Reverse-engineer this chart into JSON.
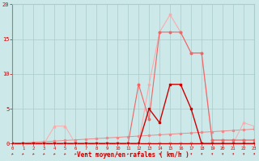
{
  "x": [
    0,
    1,
    2,
    3,
    4,
    5,
    6,
    7,
    8,
    9,
    10,
    11,
    12,
    13,
    14,
    15,
    16,
    17,
    18,
    19,
    20,
    21,
    22,
    23
  ],
  "line_dark": [
    0,
    0,
    0,
    0,
    0,
    0,
    0,
    0,
    0,
    0,
    0,
    0,
    0,
    5,
    3,
    8.5,
    8.5,
    5,
    0,
    0,
    0,
    0,
    0,
    0
  ],
  "line_mid": [
    0,
    0,
    0,
    0,
    0,
    0,
    0,
    0,
    0,
    0,
    0,
    0,
    8.5,
    3.5,
    16,
    16,
    16,
    13,
    13,
    0.5,
    0.5,
    0.5,
    0.5,
    0.5
  ],
  "line_light": [
    0,
    0,
    0,
    0,
    0,
    0,
    0,
    0,
    0,
    0,
    0,
    0,
    0,
    8.5,
    16,
    18.5,
    16,
    13,
    13,
    0.5,
    0.5,
    0.5,
    0.5,
    0.5
  ],
  "line_slope": [
    0,
    0.09,
    0.18,
    0.27,
    0.36,
    0.45,
    0.54,
    0.63,
    0.72,
    0.81,
    0.9,
    0.99,
    1.08,
    1.17,
    1.26,
    1.35,
    1.44,
    1.53,
    1.62,
    1.71,
    1.8,
    1.89,
    1.98,
    2.07
  ],
  "line_hump": [
    0,
    0,
    0,
    0,
    2.5,
    2.5,
    0,
    0,
    0,
    0,
    0,
    0,
    0,
    0,
    0,
    0,
    0,
    0,
    0,
    0,
    0,
    0,
    3,
    2.5
  ],
  "line_flat": [
    0,
    0,
    0,
    0,
    0,
    0,
    0,
    0,
    0,
    0,
    0,
    0,
    0,
    0,
    0,
    0,
    0,
    0,
    0,
    0,
    0,
    0,
    0,
    0
  ],
  "xlabel": "Vent moyen/en rafales ( km/h )",
  "yticks": [
    0,
    5,
    10,
    15,
    20
  ],
  "xticks": [
    0,
    1,
    2,
    3,
    4,
    5,
    6,
    7,
    8,
    9,
    10,
    11,
    12,
    13,
    14,
    15,
    16,
    17,
    18,
    19,
    20,
    21,
    22,
    23
  ],
  "bg_color": "#cce8e8",
  "grid_color": "#aacccc",
  "color_dark": "#cc0000",
  "color_mid": "#ee6666",
  "color_light": "#ffaaaa",
  "color_slope": "#ee8888",
  "xlabel_color": "#cc0000",
  "tick_color": "#cc0000",
  "ylim": [
    0,
    20
  ],
  "xlim": [
    0,
    23
  ]
}
